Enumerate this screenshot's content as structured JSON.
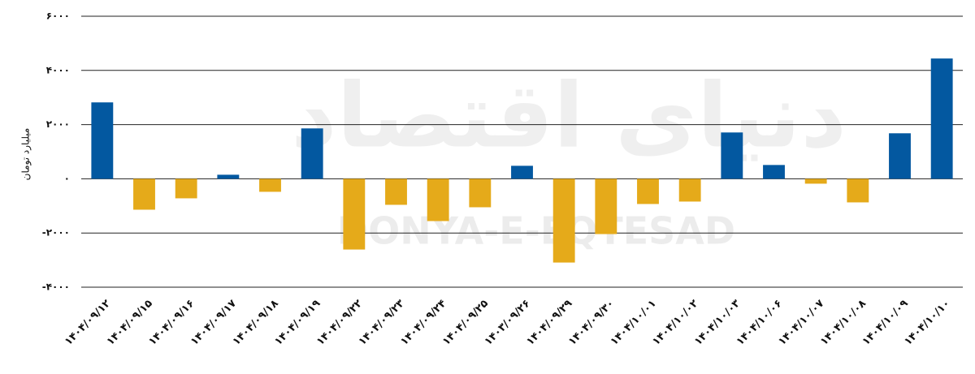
{
  "chart_data": {
    "type": "bar",
    "y_label": "میلیارد تومان",
    "watermark": "DONYA-E-EQTESAD",
    "watermark_fa": "دنیای اقتصاد",
    "categories": [
      "۱۴۰۴/۰۹/۱۲",
      "۱۴۰۴/۰۹/۱۵",
      "۱۴۰۴/۰۹/۱۶",
      "۱۴۰۴/۰۹/۱۷",
      "۱۴۰۴/۰۹/۱۸",
      "۱۴۰۴/۰۹/۱۹",
      "۱۴۰۴/۰۹/۲۲",
      "۱۴۰۴/۰۹/۲۳",
      "۱۴۰۴/۰۹/۲۴",
      "۱۴۰۴/۰۹/۲۵",
      "۱۴۰۳/۰۹/۲۶",
      "۱۴۰۴/۰۹/۲۹",
      "۱۴۰۴/۰۹/۳۰",
      "۱۴۰۴/۱۰/۰۱",
      "۱۴۰۴/۱۰/۰۲",
      "۱۴۰۴/۱۰/۰۳",
      "۱۴۰۴/۱۰/۰۶",
      "۱۴۰۴/۱۰/۰۷",
      "۱۴۰۴/۱۰/۰۸",
      "۱۴۰۴/۱۰/۰۹",
      "۱۴۰۴/۱۰/۱۰"
    ],
    "values": [
      2820,
      -1140,
      -720,
      150,
      -480,
      1860,
      -2610,
      -960,
      -1560,
      -1050,
      480,
      -3090,
      -2040,
      -930,
      -840,
      1710,
      510,
      -180,
      -870,
      1680,
      4440
    ],
    "positive_color": "#0358a0",
    "negative_color": "#e5aa1a",
    "ylim": [
      -4000,
      6000
    ],
    "yticks": [
      {
        "value": -4000,
        "label": "-۴۰۰۰"
      },
      {
        "value": -2000,
        "label": "-۲۰۰۰"
      },
      {
        "value": 0,
        "label": "۰"
      },
      {
        "value": 2000,
        "label": "۲۰۰۰"
      },
      {
        "value": 4000,
        "label": "۴۰۰۰"
      },
      {
        "value": 6000,
        "label": "۶۰۰۰"
      }
    ],
    "grid": true
  }
}
